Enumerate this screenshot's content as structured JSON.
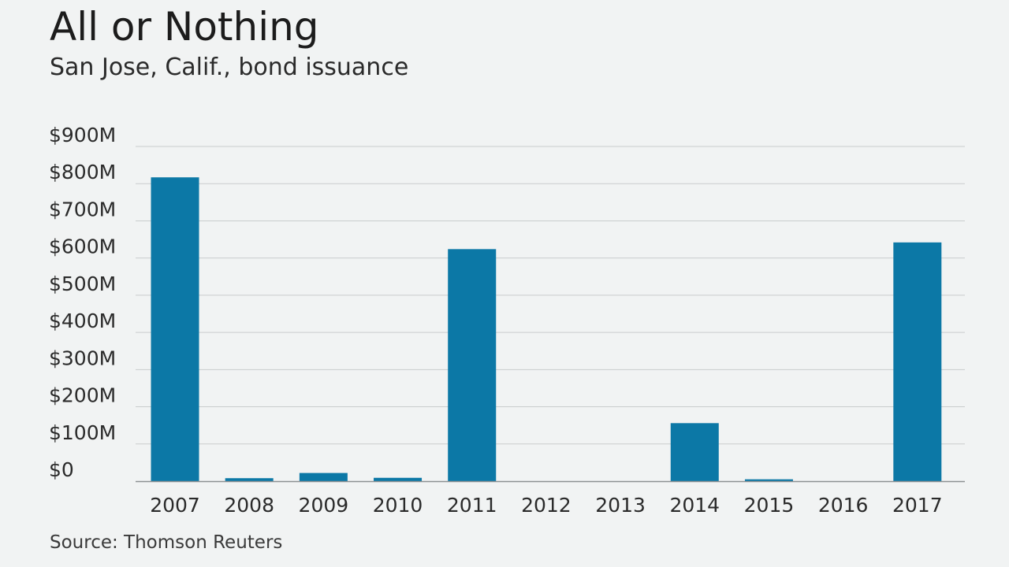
{
  "chart_data": {
    "type": "bar",
    "title": "All or Nothing",
    "subtitle": "San Jose, Calif., bond issuance",
    "source": "Source: Thomson Reuters",
    "categories": [
      "2007",
      "2008",
      "2009",
      "2010",
      "2011",
      "2012",
      "2013",
      "2014",
      "2015",
      "2016",
      "2017"
    ],
    "values": [
      817,
      8,
      22,
      9,
      624,
      0,
      0,
      156,
      5,
      0,
      642
    ],
    "ylim": [
      0,
      900
    ],
    "yticks": [
      0,
      100,
      200,
      300,
      400,
      500,
      600,
      700,
      800,
      900
    ],
    "ytick_labels": [
      "$0",
      "$100M",
      "$200M",
      "$300M",
      "$400M",
      "$500M",
      "$600M",
      "$700M",
      "$800M",
      "$900M"
    ],
    "grid": true,
    "colors": {
      "bar": "#0c78a6",
      "grid": "#c9cccd",
      "axis": "#8d9193",
      "background": "#f1f3f3"
    }
  }
}
